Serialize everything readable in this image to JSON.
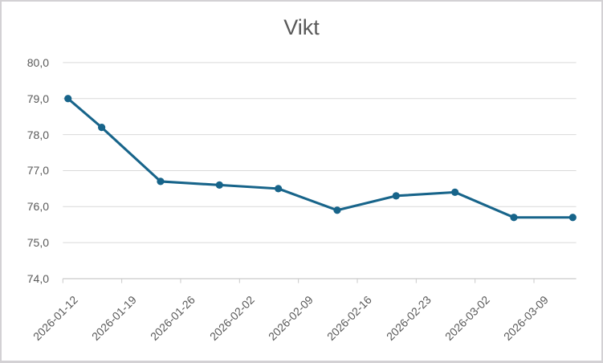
{
  "chart_data": {
    "type": "line",
    "title": "Vikt",
    "grid": true,
    "legend": false,
    "x_axis": {
      "start_date": "2026-01-12",
      "tick_interval_days": 7,
      "tick_labels": [
        "2026-01-12",
        "2026-01-19",
        "2026-01-26",
        "2026-02-02",
        "2026-02-09",
        "2026-02-16",
        "2026-02-23",
        "2026-03-02",
        "2026-03-09"
      ]
    },
    "y_axis": {
      "min": 74.0,
      "max": 80.0,
      "step": 1.0,
      "tick_labels": [
        "80,0",
        "79,0",
        "78,0",
        "77,0",
        "76,0",
        "75,0",
        "74,0"
      ]
    },
    "series": [
      {
        "color": "#17648A",
        "marker": "circle",
        "points": [
          {
            "date": "2026-01-12",
            "value": 79.0
          },
          {
            "date": "2026-01-16",
            "value": 78.2
          },
          {
            "date": "2026-01-23",
            "value": 76.7
          },
          {
            "date": "2026-01-30",
            "value": 76.6
          },
          {
            "date": "2026-02-06",
            "value": 76.5
          },
          {
            "date": "2026-02-13",
            "value": 75.9
          },
          {
            "date": "2026-02-20",
            "value": 76.3
          },
          {
            "date": "2026-02-27",
            "value": 76.4
          },
          {
            "date": "2026-03-06",
            "value": 75.7
          },
          {
            "date": "2026-03-13",
            "value": 75.7
          }
        ]
      }
    ],
    "colors": {
      "line": "#17648A",
      "title_text": "#595959",
      "axis_text": "#595959",
      "gridline": "#D9D9D9",
      "axis_line": "#C9C9C9",
      "background": "#FFFFFF",
      "border": "#D3D1D4"
    }
  }
}
